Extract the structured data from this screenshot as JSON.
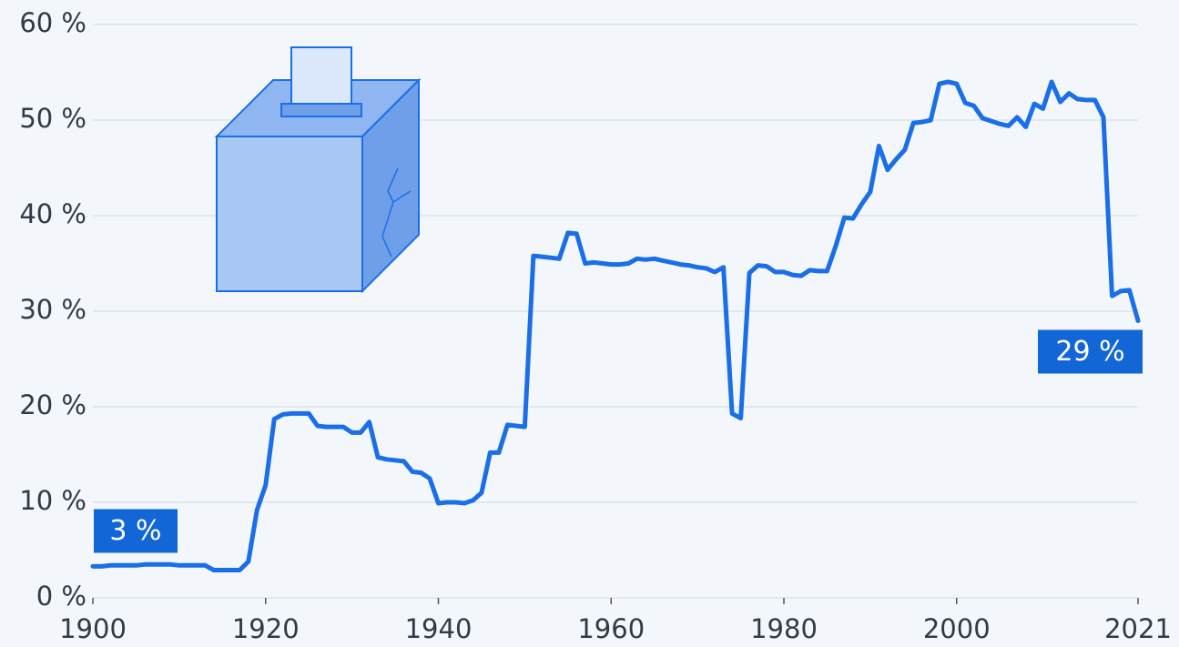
{
  "chart_data": {
    "type": "line",
    "x": [
      1900,
      1901,
      1902,
      1903,
      1904,
      1905,
      1906,
      1907,
      1908,
      1909,
      1910,
      1911,
      1912,
      1913,
      1914,
      1915,
      1916,
      1917,
      1918,
      1919,
      1920,
      1921,
      1922,
      1923,
      1924,
      1925,
      1926,
      1927,
      1928,
      1929,
      1930,
      1931,
      1932,
      1933,
      1934,
      1935,
      1936,
      1937,
      1938,
      1939,
      1940,
      1941,
      1942,
      1943,
      1944,
      1945,
      1946,
      1947,
      1948,
      1949,
      1950,
      1951,
      1952,
      1953,
      1954,
      1955,
      1956,
      1957,
      1958,
      1959,
      1960,
      1961,
      1962,
      1963,
      1964,
      1965,
      1966,
      1967,
      1968,
      1969,
      1970,
      1971,
      1972,
      1973,
      1974,
      1975,
      1976,
      1977,
      1978,
      1979,
      1980,
      1981,
      1982,
      1983,
      1984,
      1985,
      1986,
      1987,
      1988,
      1989,
      1990,
      1991,
      1992,
      1993,
      1994,
      1995,
      1996,
      1997,
      1998,
      1999,
      2000,
      2001,
      2002,
      2003,
      2004,
      2005,
      2006,
      2007,
      2008,
      2009,
      2010,
      2011,
      2012,
      2013,
      2014,
      2015,
      2016,
      2017,
      2018,
      2019,
      2020,
      2021
    ],
    "values": [
      3.3,
      3.3,
      3.4,
      3.4,
      3.4,
      3.4,
      3.5,
      3.5,
      3.5,
      3.5,
      3.4,
      3.4,
      3.4,
      3.4,
      2.9,
      2.9,
      2.9,
      2.9,
      3.8,
      9.2,
      11.8,
      18.7,
      19.2,
      19.3,
      19.3,
      19.3,
      18.0,
      17.9,
      17.9,
      17.9,
      17.3,
      17.3,
      18.4,
      14.7,
      14.5,
      14.4,
      14.3,
      13.2,
      13.1,
      12.5,
      9.9,
      10.0,
      10.0,
      9.9,
      10.2,
      11.0,
      15.2,
      15.2,
      18.1,
      18.0,
      17.9,
      35.8,
      35.7,
      35.6,
      35.5,
      38.2,
      38.1,
      35.0,
      35.1,
      35.0,
      34.9,
      34.9,
      35.0,
      35.5,
      35.4,
      35.5,
      35.3,
      35.1,
      34.9,
      34.8,
      34.6,
      34.5,
      34.1,
      34.6,
      19.3,
      18.8,
      34.0,
      34.8,
      34.7,
      34.1,
      34.1,
      33.8,
      33.7,
      34.3,
      34.2,
      34.2,
      36.8,
      39.8,
      39.7,
      41.2,
      42.5,
      47.3,
      44.8,
      45.9,
      46.9,
      49.7,
      49.8,
      50.0,
      53.8,
      54.0,
      53.8,
      51.8,
      51.5,
      50.2,
      49.9,
      49.6,
      49.4,
      50.3,
      49.3,
      51.7,
      51.2,
      54.0,
      51.9,
      52.8,
      52.2,
      52.1,
      52.1,
      50.3,
      31.6,
      32.1,
      32.2,
      29
    ],
    "color": "#1a6fe8",
    "xlim": [
      1900,
      2021
    ],
    "xticks": [
      1900,
      1920,
      1940,
      1960,
      1980,
      2000,
      2021
    ],
    "ylim": [
      0,
      60
    ],
    "yticks": [
      {
        "value": 0,
        "label": "0 %"
      },
      {
        "value": 10,
        "label": "10 %"
      },
      {
        "value": 20,
        "label": "20 %"
      },
      {
        "value": 30,
        "label": "30 %"
      },
      {
        "value": 40,
        "label": "40 %"
      },
      {
        "value": 50,
        "label": "50 %"
      },
      {
        "value": 60,
        "label": "60 %"
      }
    ],
    "grid": true,
    "annotations": [
      {
        "x": 1900,
        "y": 3,
        "label": "3 %"
      },
      {
        "x": 2021,
        "y": 29,
        "label": "29 %"
      }
    ]
  }
}
